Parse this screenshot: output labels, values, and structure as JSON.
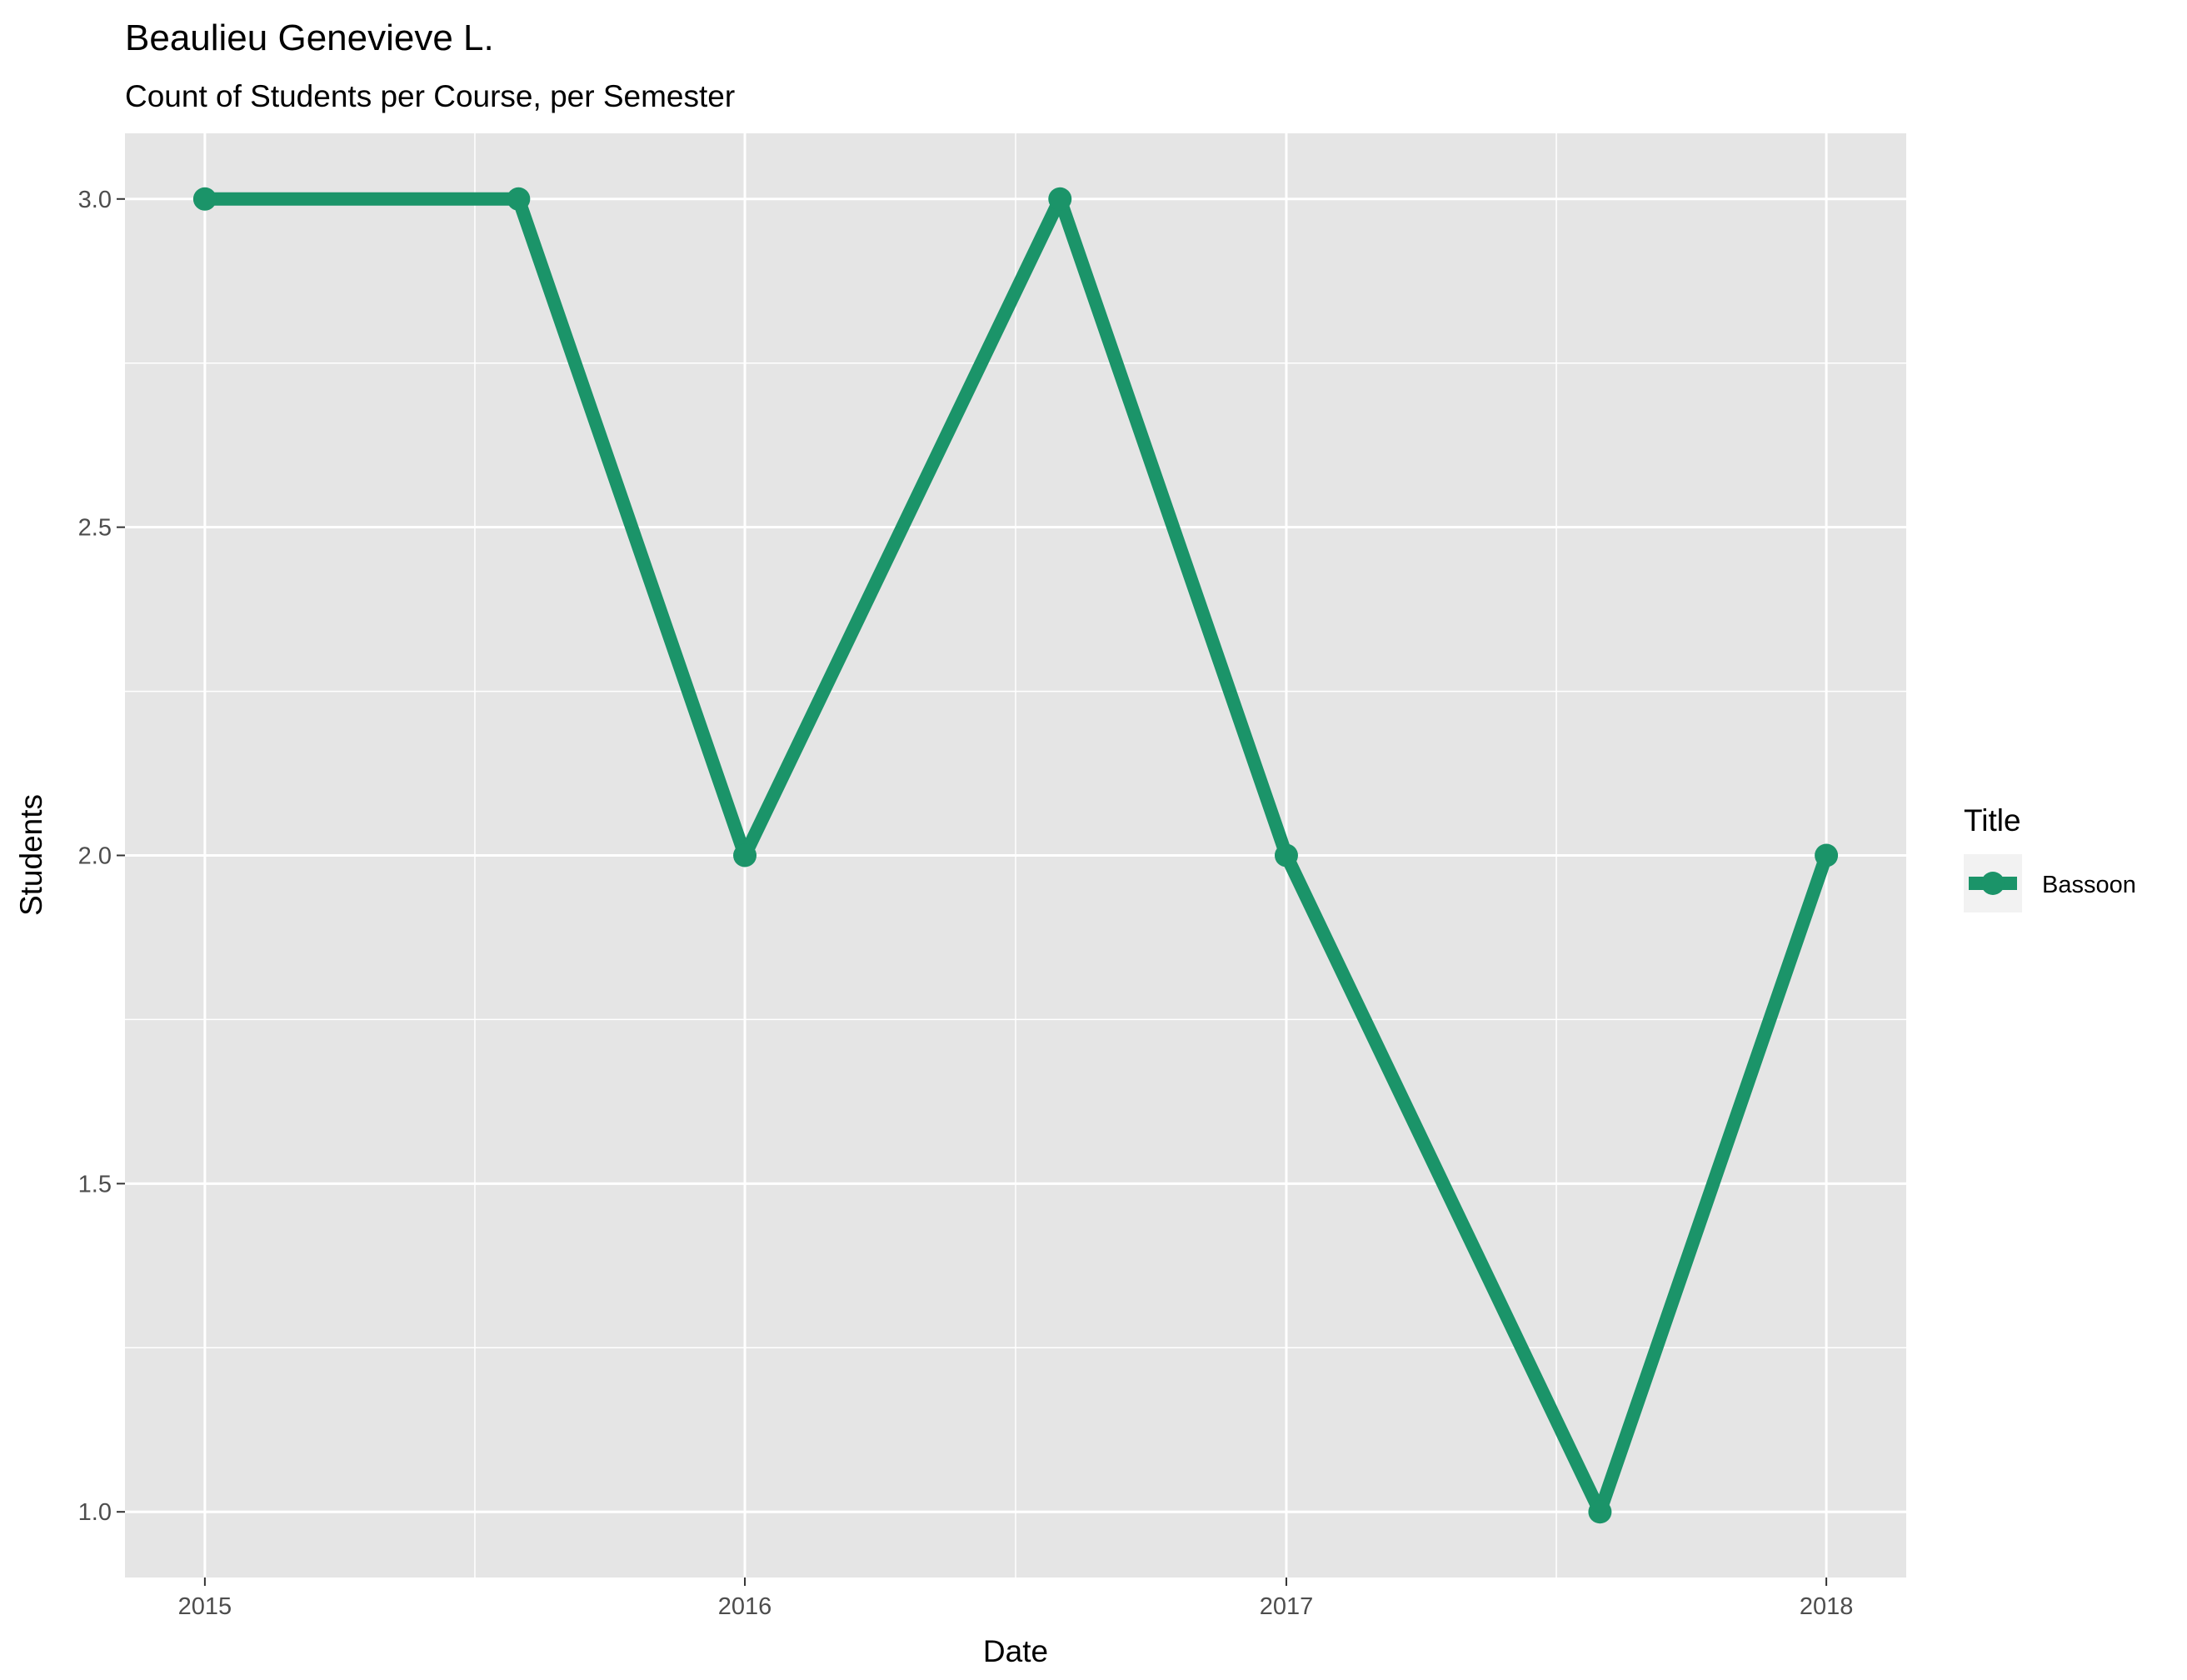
{
  "chart_data": {
    "type": "line",
    "title": "Beaulieu Genevieve L.",
    "subtitle": "Count of Students per Course, per Semester",
    "xlabel": "Date",
    "ylabel": "Students",
    "x_ticks": [
      "2015",
      "2016",
      "2017",
      "2018"
    ],
    "y_ticks": [
      "1.0",
      "1.5",
      "2.0",
      "2.5",
      "3.0"
    ],
    "xlim": [
      "2014-11-08",
      "2018-02-24"
    ],
    "ylim": [
      0.9,
      3.1
    ],
    "grid": true,
    "legend": {
      "title": "Title",
      "position": "right"
    },
    "series": [
      {
        "name": "Bassoon",
        "color": "#1b9469",
        "points": [
          {
            "x": "2015-01-01",
            "y": 3
          },
          {
            "x": "2015-08-01",
            "y": 3
          },
          {
            "x": "2016-01-01",
            "y": 2
          },
          {
            "x": "2016-08-01",
            "y": 3
          },
          {
            "x": "2017-01-01",
            "y": 2
          },
          {
            "x": "2017-08-01",
            "y": 1
          },
          {
            "x": "2018-01-01",
            "y": 2
          }
        ]
      }
    ]
  }
}
